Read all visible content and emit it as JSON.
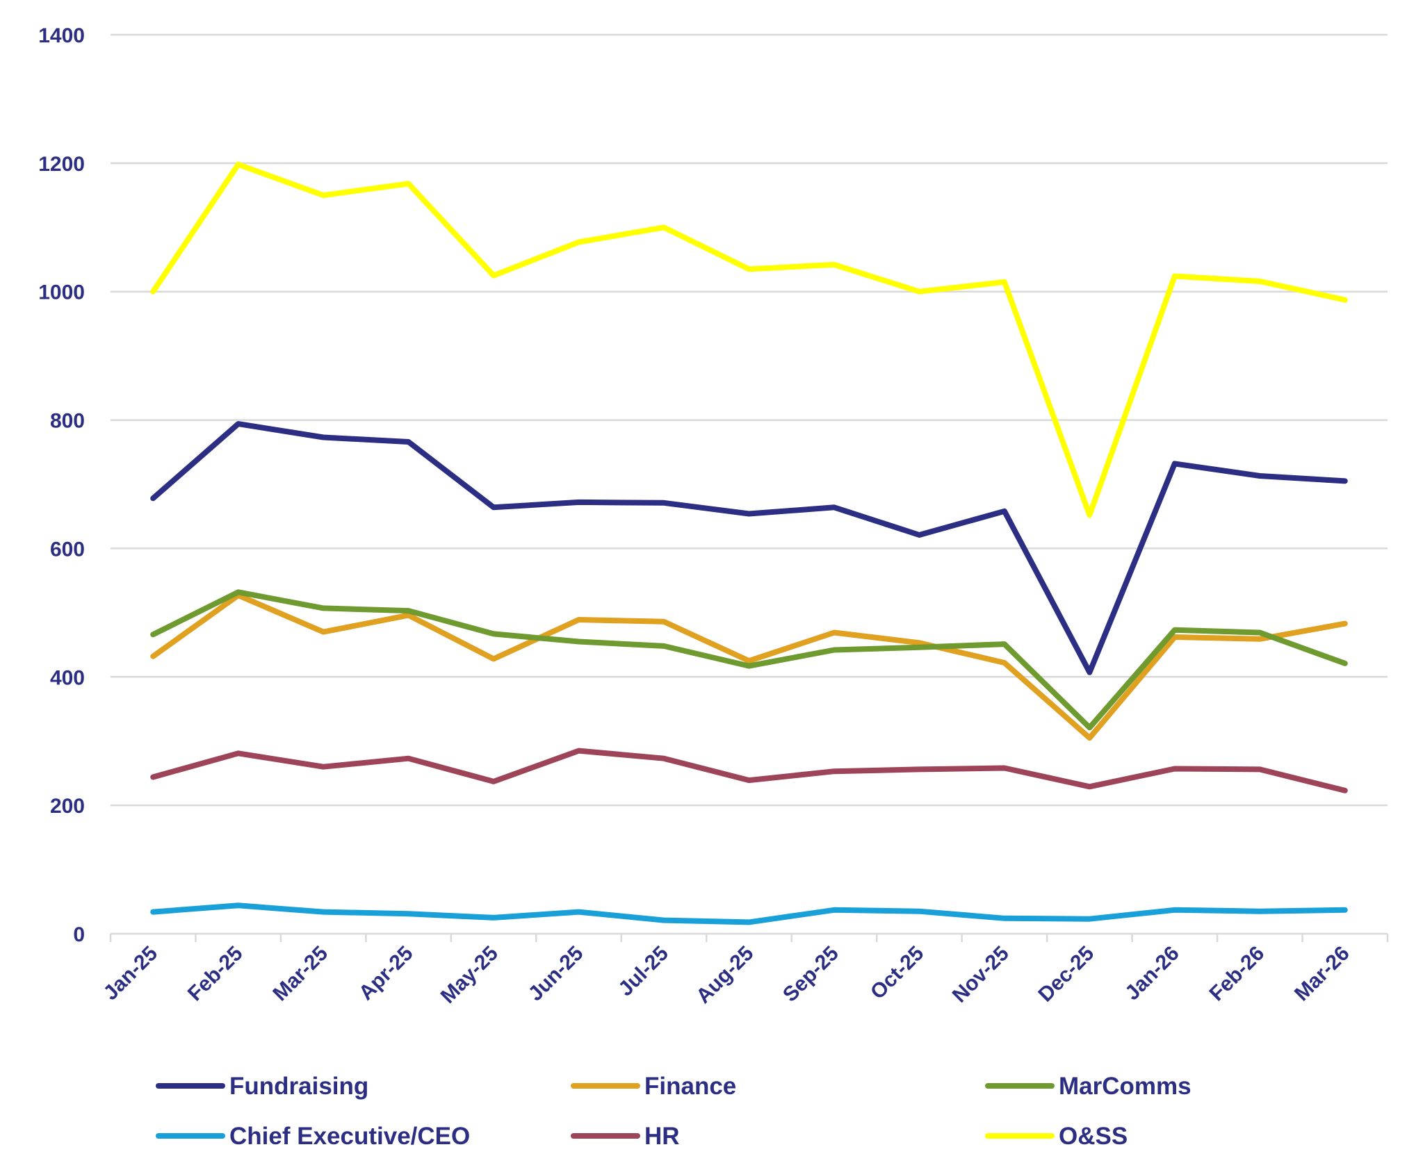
{
  "chart_data": {
    "type": "line",
    "title": "",
    "xlabel": "",
    "ylabel": "",
    "ylim": [
      0,
      1400
    ],
    "yticks": [
      0,
      200,
      400,
      600,
      800,
      1000,
      1200,
      1400
    ],
    "grid": true,
    "legend_position": "bottom",
    "categories": [
      "Jan-25",
      "Feb-25",
      "Mar-25",
      "Apr-25",
      "May-25",
      "Jun-25",
      "Jul-25",
      "Aug-25",
      "Sep-25",
      "Oct-25",
      "Nov-25",
      "Dec-25",
      "Jan-26",
      "Feb-26",
      "Mar-26"
    ],
    "series": [
      {
        "name": "Fundraising",
        "color": "#2b2e83",
        "values": [
          678,
          794,
          773,
          766,
          664,
          672,
          671,
          654,
          664,
          621,
          658,
          407,
          732,
          713,
          705
        ]
      },
      {
        "name": "Finance",
        "color": "#e0a020",
        "values": [
          432,
          527,
          470,
          496,
          428,
          489,
          486,
          425,
          469,
          453,
          422,
          305,
          462,
          459,
          483
        ]
      },
      {
        "name": "MarComms",
        "color": "#6f9a30",
        "values": [
          466,
          532,
          507,
          503,
          467,
          455,
          448,
          417,
          442,
          446,
          451,
          321,
          473,
          469,
          421
        ]
      },
      {
        "name": "Chief Executive/CEO",
        "color": "#1aa0d8",
        "values": [
          34,
          44,
          34,
          31,
          25,
          34,
          21,
          18,
          37,
          35,
          24,
          23,
          37,
          35,
          37
        ]
      },
      {
        "name": "HR",
        "color": "#9e4458",
        "values": [
          244,
          281,
          260,
          273,
          237,
          285,
          273,
          239,
          253,
          256,
          258,
          229,
          257,
          256,
          223
        ]
      },
      {
        "name": "O&SS",
        "color": "#ffff00",
        "values": [
          1000,
          1198,
          1150,
          1168,
          1025,
          1077,
          1100,
          1035,
          1042,
          1000,
          1015,
          652,
          1024,
          1016,
          987
        ]
      }
    ]
  }
}
